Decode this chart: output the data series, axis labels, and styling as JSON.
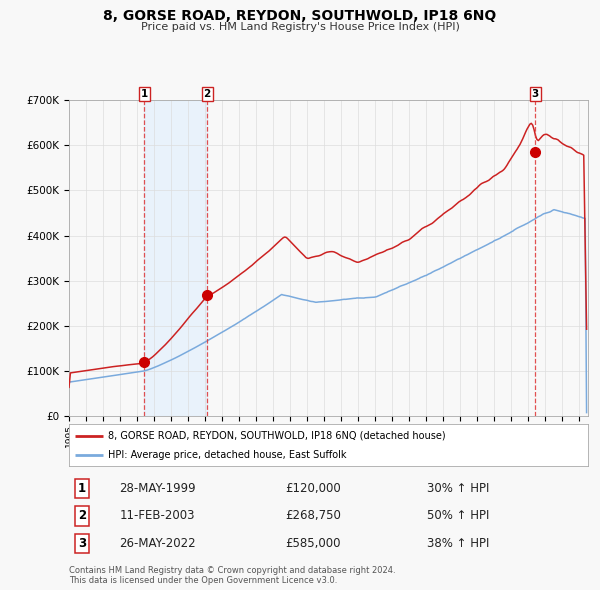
{
  "title": "8, GORSE ROAD, REYDON, SOUTHWOLD, IP18 6NQ",
  "subtitle": "Price paid vs. HM Land Registry's House Price Index (HPI)",
  "ylim": [
    0,
    700000
  ],
  "yticks": [
    0,
    100000,
    200000,
    300000,
    400000,
    500000,
    600000,
    700000
  ],
  "ytick_labels": [
    "£0",
    "£100K",
    "£200K",
    "£300K",
    "£400K",
    "£500K",
    "£600K",
    "£700K"
  ],
  "hpi_color": "#7aaadd",
  "price_color": "#cc2222",
  "sale_marker_color": "#cc0000",
  "vline_color": "#dd3333",
  "shade_color": "#ddeeff",
  "background_color": "#f8f8f8",
  "plot_bg_color": "#f8f8f8",
  "grid_color": "#dddddd",
  "sales": [
    {
      "label": "1",
      "date_str": "28-MAY-1999",
      "date_num": 1999.41,
      "price": 120000,
      "pct": "30%",
      "dir": "↑"
    },
    {
      "label": "2",
      "date_str": "11-FEB-2003",
      "date_num": 2003.12,
      "price": 268750,
      "pct": "50%",
      "dir": "↑"
    },
    {
      "label": "3",
      "date_str": "26-MAY-2022",
      "date_num": 2022.41,
      "price": 585000,
      "pct": "38%",
      "dir": "↑"
    }
  ],
  "legend_line1": "8, GORSE ROAD, REYDON, SOUTHWOLD, IP18 6NQ (detached house)",
  "legend_line2": "HPI: Average price, detached house, East Suffolk",
  "footnote1": "Contains HM Land Registry data © Crown copyright and database right 2024.",
  "footnote2": "This data is licensed under the Open Government Licence v3.0.",
  "xmin": 1995.0,
  "xmax": 2025.5
}
